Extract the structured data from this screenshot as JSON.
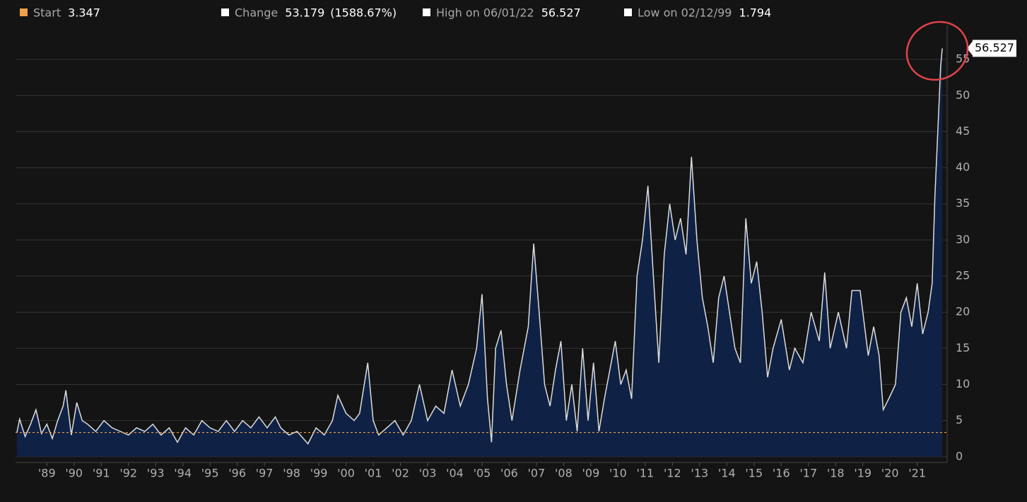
{
  "chart_data": {
    "type": "area",
    "stats": [
      {
        "label": "Start",
        "value": 3.347,
        "color": "#f0a04b"
      },
      {
        "label": "Change",
        "value": 53.179,
        "extra": "(1588.67%)",
        "color": "#ffffff"
      },
      {
        "label": "High on 06/01/22",
        "value": 56.527,
        "color": "#ffffff"
      },
      {
        "label": "Low on 02/12/99",
        "value": 1.794,
        "color": "#ffffff"
      }
    ],
    "x": [
      1988.4,
      1988.5,
      1988.7,
      1988.9,
      1989.1,
      1989.3,
      1989.5,
      1989.7,
      1989.9,
      1990.1,
      1990.2,
      1990.4,
      1990.6,
      1990.8,
      1991.0,
      1991.3,
      1991.6,
      1991.9,
      1992.2,
      1992.5,
      1992.8,
      1993.1,
      1993.4,
      1993.7,
      1994.0,
      1994.3,
      1994.6,
      1994.9,
      1995.2,
      1995.5,
      1995.8,
      1996.1,
      1996.4,
      1996.7,
      1997.0,
      1997.3,
      1997.6,
      1997.9,
      1998.1,
      1998.4,
      1998.7,
      1999.1,
      1999.4,
      1999.7,
      2000.0,
      2000.2,
      2000.5,
      2000.8,
      2001.0,
      2001.3,
      2001.5,
      2001.7,
      2002.0,
      2002.3,
      2002.6,
      2002.9,
      2003.2,
      2003.5,
      2003.8,
      2004.1,
      2004.4,
      2004.7,
      2005.0,
      2005.3,
      2005.5,
      2005.7,
      2005.85,
      2006.0,
      2006.2,
      2006.4,
      2006.6,
      2006.9,
      2007.2,
      2007.4,
      2007.6,
      2007.8,
      2008.0,
      2008.2,
      2008.4,
      2008.6,
      2008.8,
      2009.0,
      2009.2,
      2009.4,
      2009.6,
      2009.8,
      2010.0,
      2010.2,
      2010.4,
      2010.6,
      2010.8,
      2011.0,
      2011.2,
      2011.4,
      2011.6,
      2011.8,
      2012.0,
      2012.2,
      2012.4,
      2012.6,
      2012.8,
      2013.0,
      2013.2,
      2013.4,
      2013.6,
      2013.8,
      2014.0,
      2014.2,
      2014.4,
      2014.6,
      2014.8,
      2015.0,
      2015.2,
      2015.4,
      2015.6,
      2015.8,
      2016.0,
      2016.2,
      2016.5,
      2016.8,
      2017.0,
      2017.3,
      2017.6,
      2017.9,
      2018.1,
      2018.3,
      2018.6,
      2018.9,
      2019.1,
      2019.4,
      2019.7,
      2019.9,
      2020.1,
      2020.25,
      2020.45,
      2020.7,
      2020.9,
      2021.1,
      2021.3,
      2021.5,
      2021.7,
      2021.9,
      2022.05,
      2022.15,
      2022.28,
      2022.36,
      2022.42
    ],
    "series": [
      {
        "name": "Value",
        "color": "#dcdcdc",
        "fill": "#0f2245",
        "values": [
          3.347,
          5.2,
          2.8,
          4.5,
          6.5,
          3.2,
          4.5,
          2.5,
          5,
          7,
          9.2,
          3,
          7.5,
          5,
          4.5,
          3.5,
          5,
          4,
          3.5,
          3,
          4,
          3.5,
          4.5,
          3,
          4,
          2,
          4,
          3,
          5,
          4,
          3.5,
          5,
          3.5,
          5,
          4,
          5.5,
          4,
          5.5,
          4,
          3,
          3.5,
          1.794,
          4,
          3,
          5,
          8.5,
          6,
          5,
          6,
          13,
          5,
          3,
          4,
          5,
          3,
          5,
          10,
          5,
          7,
          6,
          12,
          7,
          10,
          15,
          22.5,
          8,
          2,
          15,
          17.5,
          10,
          5,
          12,
          18,
          29.5,
          20,
          10,
          7,
          12,
          16,
          5,
          10,
          3.5,
          15,
          5,
          13,
          3.5,
          8,
          12,
          16,
          10,
          12,
          8,
          25,
          30,
          37.5,
          25,
          13,
          28,
          35,
          30,
          33,
          28,
          41.5,
          30,
          22,
          18,
          13,
          22,
          25,
          20,
          15,
          13,
          33,
          24,
          27,
          20,
          11,
          15,
          19,
          12,
          15,
          13,
          20,
          16,
          25.5,
          15,
          20,
          15,
          23,
          23,
          14,
          18,
          14,
          6.5,
          8,
          10,
          20,
          22,
          18,
          24,
          17,
          20,
          24,
          36,
          47,
          54,
          56.527
        ]
      }
    ],
    "xlim": [
      1988.35,
      2022.6
    ],
    "ylim": [
      -0.8,
      59.8
    ],
    "xticks": [
      {
        "value": 1989.5,
        "label": "'89"
      },
      {
        "value": 1990.5,
        "label": "'90"
      },
      {
        "value": 1991.5,
        "label": "'91"
      },
      {
        "value": 1992.5,
        "label": "'92"
      },
      {
        "value": 1993.5,
        "label": "'93"
      },
      {
        "value": 1994.5,
        "label": "'94"
      },
      {
        "value": 1995.5,
        "label": "'95"
      },
      {
        "value": 1996.5,
        "label": "'96"
      },
      {
        "value": 1997.5,
        "label": "'97"
      },
      {
        "value": 1998.5,
        "label": "'98"
      },
      {
        "value": 1999.5,
        "label": "'99"
      },
      {
        "value": 2000.5,
        "label": "'00"
      },
      {
        "value": 2001.5,
        "label": "'01"
      },
      {
        "value": 2002.5,
        "label": "'02"
      },
      {
        "value": 2003.5,
        "label": "'03"
      },
      {
        "value": 2004.5,
        "label": "'04"
      },
      {
        "value": 2005.5,
        "label": "'05"
      },
      {
        "value": 2006.5,
        "label": "'06"
      },
      {
        "value": 2007.5,
        "label": "'07"
      },
      {
        "value": 2008.5,
        "label": "'08"
      },
      {
        "value": 2009.5,
        "label": "'09"
      },
      {
        "value": 2010.5,
        "label": "'10"
      },
      {
        "value": 2011.5,
        "label": "'11"
      },
      {
        "value": 2012.5,
        "label": "'12"
      },
      {
        "value": 2013.5,
        "label": "'13"
      },
      {
        "value": 2014.5,
        "label": "'14"
      },
      {
        "value": 2015.5,
        "label": "'15"
      },
      {
        "value": 2016.5,
        "label": "'16"
      },
      {
        "value": 2017.5,
        "label": "'17"
      },
      {
        "value": 2018.5,
        "label": "'18"
      },
      {
        "value": 2019.5,
        "label": "'19"
      },
      {
        "value": 2020.5,
        "label": "'20"
      },
      {
        "value": 2021.5,
        "label": "'21"
      }
    ],
    "yticks": [
      0,
      5,
      10,
      15,
      20,
      25,
      30,
      35,
      40,
      45,
      50,
      55
    ],
    "grid": true
  }
}
